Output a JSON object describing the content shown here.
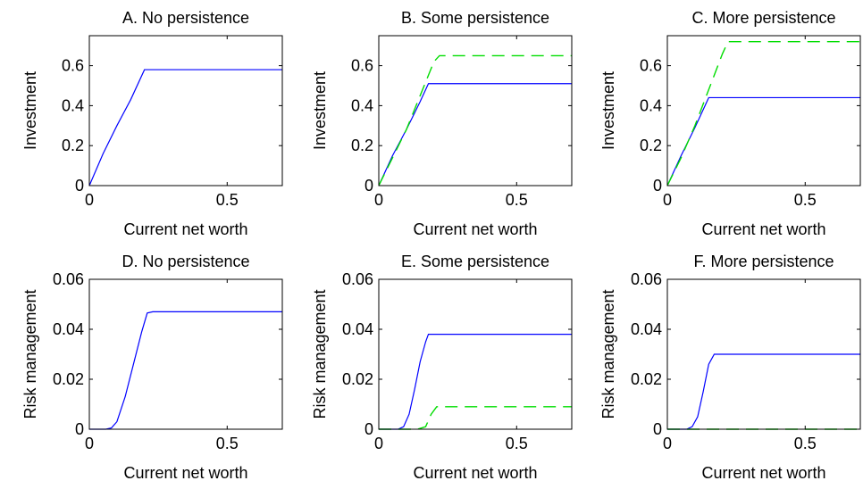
{
  "chart_data": [
    {
      "type": "line",
      "title": "A. No persistence",
      "xlabel": "Current net worth",
      "ylabel": "Investment",
      "xlim": [
        0,
        0.7
      ],
      "ylim": [
        0,
        0.75
      ],
      "xticks": [
        0,
        0.5
      ],
      "xtick_labels": [
        "0",
        "0.5"
      ],
      "yticks": [
        0,
        0.2,
        0.4,
        0.6
      ],
      "ytick_labels": [
        "0",
        "0.2",
        "0.4",
        "0.6"
      ],
      "series": [
        {
          "color": "#0000ff",
          "style": "solid",
          "x": [
            0,
            0.05,
            0.1,
            0.15,
            0.2,
            0.7
          ],
          "y": [
            0,
            0.16,
            0.3,
            0.43,
            0.58,
            0.58
          ]
        }
      ]
    },
    {
      "type": "line",
      "title": "B. Some persistence",
      "xlabel": "Current net worth",
      "ylabel": "Investment",
      "xlim": [
        0,
        0.7
      ],
      "ylim": [
        0,
        0.75
      ],
      "xticks": [
        0,
        0.5
      ],
      "xtick_labels": [
        "0",
        "0.5"
      ],
      "yticks": [
        0,
        0.2,
        0.4,
        0.6
      ],
      "ytick_labels": [
        "0",
        "0.2",
        "0.4",
        "0.6"
      ],
      "series": [
        {
          "color": "#0000ff",
          "style": "solid",
          "x": [
            0,
            0.05,
            0.1,
            0.15,
            0.18,
            0.7
          ],
          "y": [
            0,
            0.15,
            0.28,
            0.42,
            0.51,
            0.51
          ]
        },
        {
          "color": "#00dd00",
          "style": "dashed",
          "x": [
            0,
            0.05,
            0.1,
            0.15,
            0.2,
            0.22,
            0.7
          ],
          "y": [
            0,
            0.14,
            0.28,
            0.45,
            0.62,
            0.65,
            0.65
          ]
        }
      ]
    },
    {
      "type": "line",
      "title": "C. More persistence",
      "xlabel": "Current net worth",
      "ylabel": "Investment",
      "xlim": [
        0,
        0.7
      ],
      "ylim": [
        0,
        0.75
      ],
      "xticks": [
        0,
        0.5
      ],
      "xtick_labels": [
        "0",
        "0.5"
      ],
      "yticks": [
        0,
        0.2,
        0.4,
        0.6
      ],
      "ytick_labels": [
        "0",
        "0.2",
        "0.4",
        "0.6"
      ],
      "series": [
        {
          "color": "#0000ff",
          "style": "solid",
          "x": [
            0,
            0.05,
            0.1,
            0.15,
            0.7
          ],
          "y": [
            0,
            0.15,
            0.29,
            0.44,
            0.44
          ]
        },
        {
          "color": "#00dd00",
          "style": "dashed",
          "x": [
            0,
            0.05,
            0.1,
            0.15,
            0.2,
            0.22,
            0.7
          ],
          "y": [
            0,
            0.14,
            0.3,
            0.48,
            0.66,
            0.72,
            0.72
          ]
        }
      ]
    },
    {
      "type": "line",
      "title": "D. No persistence",
      "xlabel": "Current net worth",
      "ylabel": "Risk management",
      "xlim": [
        0,
        0.7
      ],
      "ylim": [
        0,
        0.06
      ],
      "xticks": [
        0,
        0.5
      ],
      "xtick_labels": [
        "0",
        "0.5"
      ],
      "yticks": [
        0,
        0.02,
        0.04,
        0.06
      ],
      "ytick_labels": [
        "0",
        "0.02",
        "0.04",
        "0.06"
      ],
      "series": [
        {
          "color": "#0000ff",
          "style": "solid",
          "x": [
            0,
            0.06,
            0.08,
            0.1,
            0.13,
            0.16,
            0.19,
            0.21,
            0.23,
            0.7
          ],
          "y": [
            0,
            0,
            0.0005,
            0.003,
            0.013,
            0.026,
            0.039,
            0.0465,
            0.047,
            0.047
          ]
        }
      ]
    },
    {
      "type": "line",
      "title": "E. Some persistence",
      "xlabel": "Current net worth",
      "ylabel": "Risk management",
      "xlim": [
        0,
        0.7
      ],
      "ylim": [
        0,
        0.06
      ],
      "xticks": [
        0,
        0.5
      ],
      "xtick_labels": [
        "0",
        "0.5"
      ],
      "yticks": [
        0,
        0.02,
        0.04,
        0.06
      ],
      "ytick_labels": [
        "0",
        "0.02",
        "0.04",
        "0.06"
      ],
      "series": [
        {
          "color": "#0000ff",
          "style": "solid",
          "x": [
            0,
            0.07,
            0.09,
            0.11,
            0.13,
            0.15,
            0.17,
            0.18,
            0.2,
            0.7
          ],
          "y": [
            0,
            0,
            0.001,
            0.006,
            0.016,
            0.027,
            0.035,
            0.038,
            0.038,
            0.038
          ]
        },
        {
          "color": "#00dd00",
          "style": "dashed",
          "x": [
            0,
            0.14,
            0.17,
            0.19,
            0.21,
            0.7
          ],
          "y": [
            0,
            0,
            0.001,
            0.006,
            0.009,
            0.009
          ]
        }
      ]
    },
    {
      "type": "line",
      "title": "F. More persistence",
      "xlabel": "Current net worth",
      "ylabel": "Risk management",
      "xlim": [
        0,
        0.7
      ],
      "ylim": [
        0,
        0.06
      ],
      "xticks": [
        0,
        0.5
      ],
      "xtick_labels": [
        "0",
        "0.5"
      ],
      "yticks": [
        0,
        0.02,
        0.04,
        0.06
      ],
      "ytick_labels": [
        "0",
        "0.02",
        "0.04",
        "0.06"
      ],
      "series": [
        {
          "color": "#0000ff",
          "style": "solid",
          "x": [
            0,
            0.07,
            0.09,
            0.11,
            0.13,
            0.15,
            0.17,
            0.7
          ],
          "y": [
            0,
            0,
            0.001,
            0.005,
            0.015,
            0.026,
            0.03,
            0.03
          ]
        },
        {
          "color": "#00dd00",
          "style": "dashed",
          "x": [
            0,
            0.7
          ],
          "y": [
            0,
            0
          ]
        }
      ]
    }
  ]
}
